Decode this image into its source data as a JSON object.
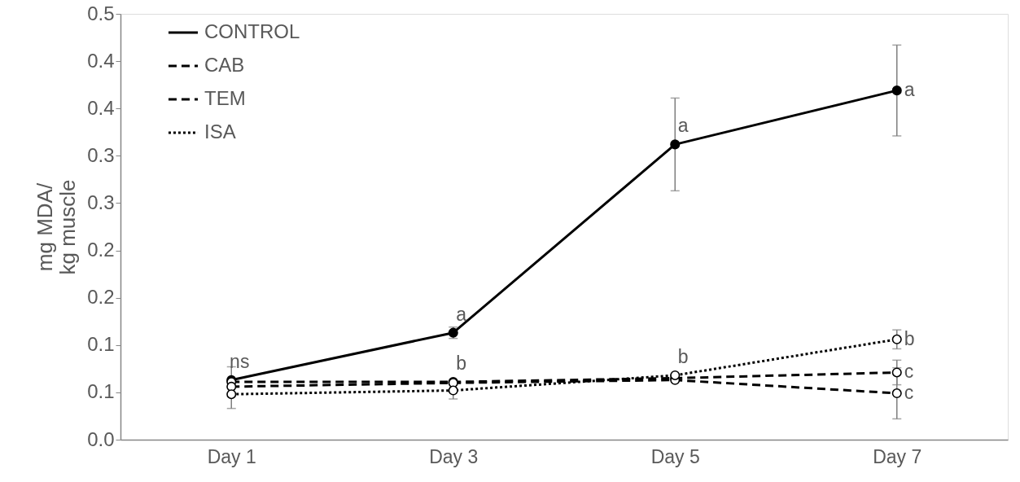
{
  "chart_data": {
    "type": "line",
    "ylabel": "mg MDA/\nkg muscle",
    "categories": [
      "Day 1",
      "Day 3",
      "Day 5",
      "Day 7"
    ],
    "series": [
      {
        "name": "CONTROL",
        "color": "#000000",
        "line_style": "solid",
        "values": [
          0.063,
          0.113,
          0.312,
          0.369
        ],
        "errors": [
          0.014,
          0.006,
          0.049,
          0.048
        ],
        "value_labels": [
          "ns",
          "a",
          "a",
          "a"
        ]
      },
      {
        "name": "CAB",
        "color": "#000000",
        "line_style": "dashed",
        "values": [
          0.061,
          0.061,
          0.065,
          0.071
        ],
        "errors": [
          null,
          null,
          null,
          0.013
        ],
        "value_labels": [
          null,
          "b",
          null,
          "c"
        ]
      },
      {
        "name": "TEM",
        "color": "#000000",
        "line_style": "dashed",
        "values": [
          0.056,
          0.06,
          0.063,
          0.049
        ],
        "errors": [
          null,
          null,
          null,
          0.027
        ],
        "value_labels": [
          null,
          null,
          null,
          "c"
        ]
      },
      {
        "name": "ISA",
        "color": "#000000",
        "line_style": "dotted",
        "values": [
          0.048,
          0.052,
          0.068,
          0.106
        ],
        "errors": [
          0.015,
          0.009,
          null,
          0.01
        ],
        "value_labels": [
          null,
          null,
          "b",
          "b"
        ]
      }
    ],
    "ylim": [
      0,
      0.45
    ],
    "yticks": [
      {
        "value": 0,
        "label": "0.0"
      },
      {
        "value": 0.05,
        "label": "0.1"
      },
      0.1,
      {
        "value": 0.15,
        "label": "0.2"
      },
      0.2,
      {
        "value": 0.25,
        "label": "0.3"
      },
      0.3,
      {
        "value": 0.35,
        "label": "0.4"
      },
      0.4,
      {
        "value": 0.45,
        "label": "0.5"
      }
    ],
    "marker": "circle",
    "legend": "top left"
  }
}
